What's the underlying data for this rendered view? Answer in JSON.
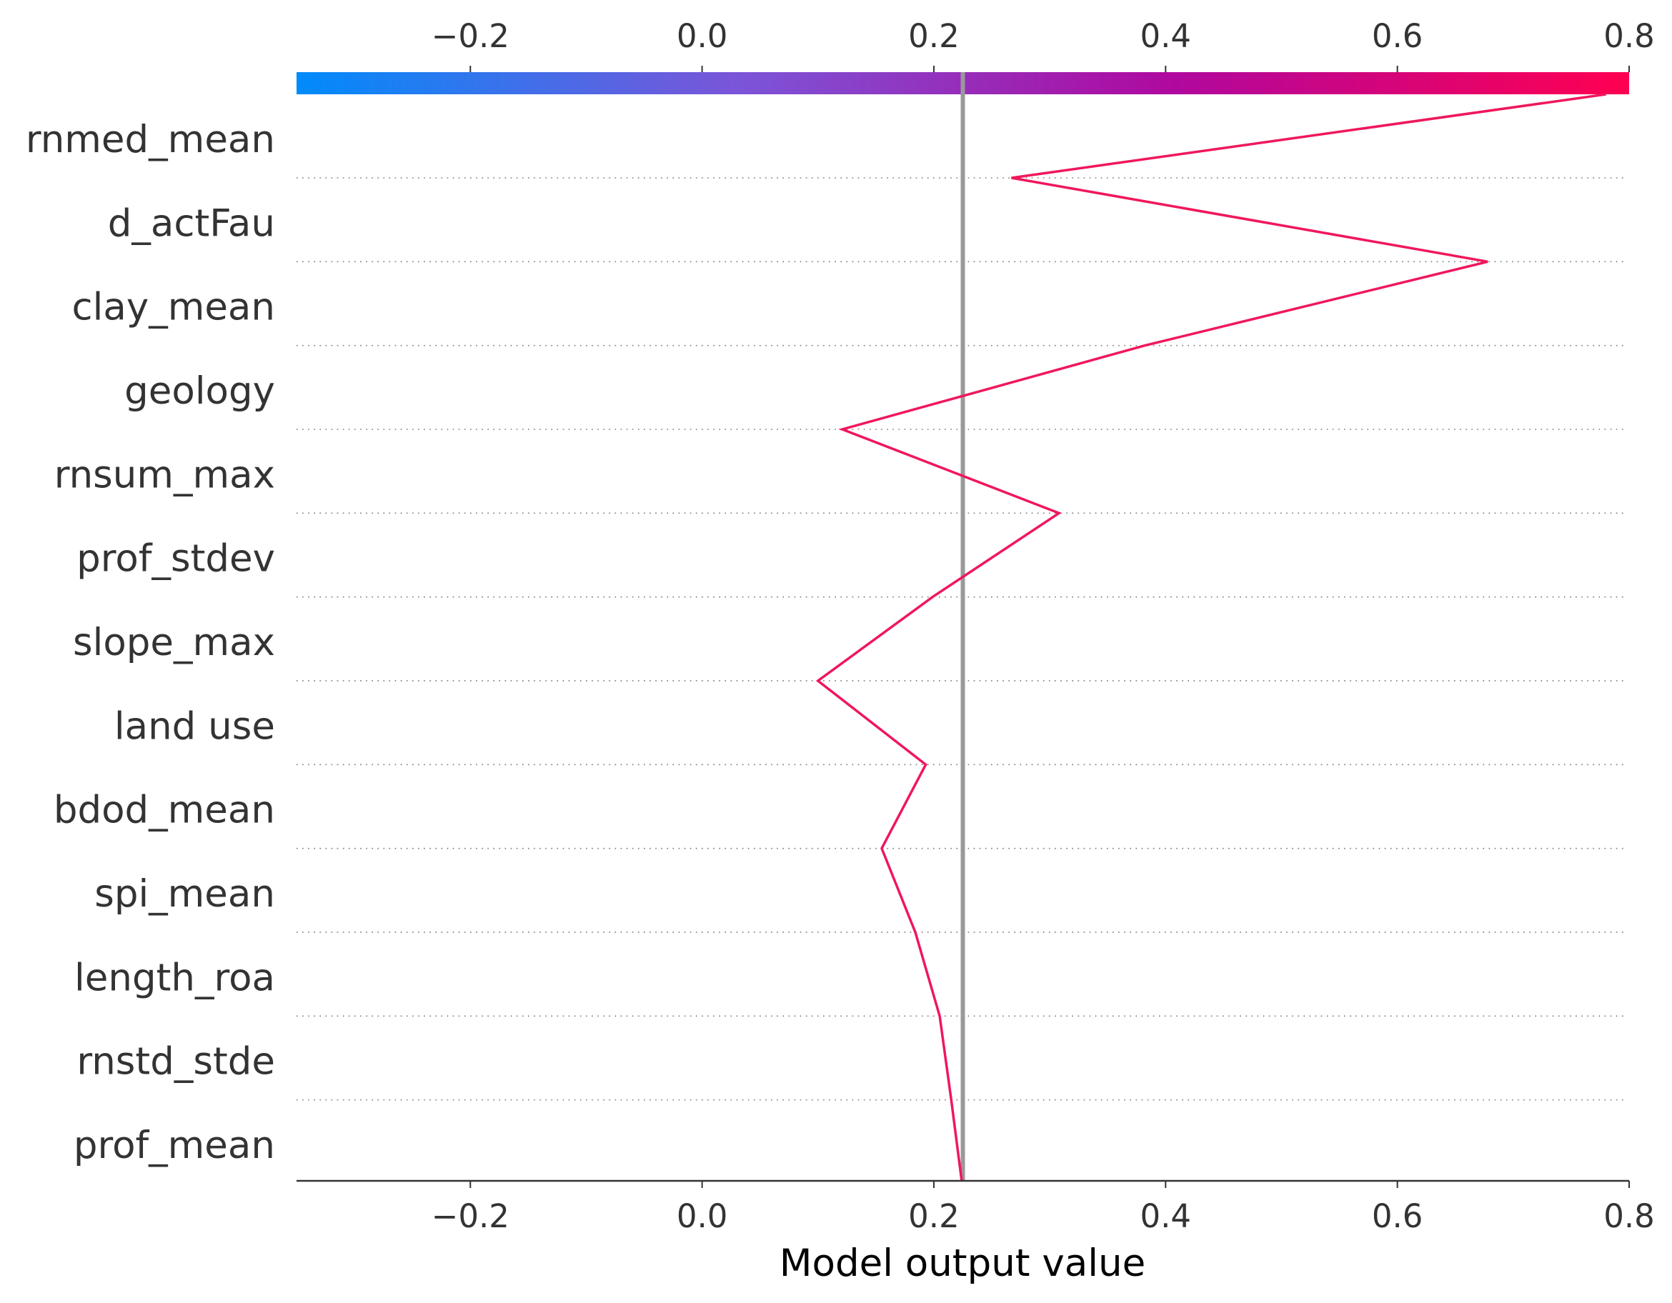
{
  "chart_data": {
    "type": "line",
    "subtype": "shap-decision-plot",
    "xlabel": "Model output value",
    "xlim": [
      -0.35,
      0.8
    ],
    "xticks": [
      -0.2,
      0.0,
      0.2,
      0.4,
      0.6,
      0.8
    ],
    "xtick_labels": [
      "−0.2",
      "0.0",
      "0.2",
      "0.4",
      "0.6",
      "0.8"
    ],
    "base_value": 0.225,
    "features_top_to_bottom": [
      "rnmed_mean",
      "d_actFau",
      "clay_mean",
      "geology",
      "rnsum_max",
      "prof_stdev",
      "slope_max",
      "land use",
      "bdod_mean",
      "spi_mean",
      "length_roa",
      "rnstd_stde",
      "prof_mean"
    ],
    "series": [
      {
        "values_top_to_bottom": [
          0.78,
          0.267,
          0.678,
          0.382,
          0.121,
          0.308,
          0.199,
          0.1,
          0.193,
          0.155,
          0.184,
          0.205,
          0.215,
          0.224
        ]
      }
    ],
    "colorbar": {
      "range": [
        -0.35,
        0.8
      ],
      "colors": [
        "#008bfb",
        "#7b55d8",
        "#b0089e",
        "#ff0051"
      ]
    },
    "grid": "dotted horizontal separators between features",
    "line_color": "#f0175c",
    "base_line_color": "#999999"
  }
}
